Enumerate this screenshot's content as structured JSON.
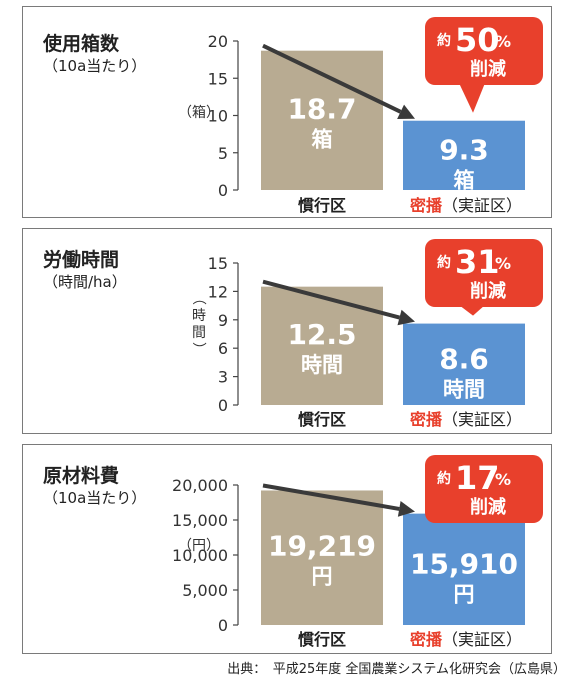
{
  "chart_data": [
    {
      "type": "bar",
      "title": "使用箱数",
      "subtitle": "（10a当たり）",
      "ylabel": "（箱）",
      "ylim": [
        0,
        20
      ],
      "yticks": [
        0,
        5,
        10,
        15,
        20
      ],
      "categories": [
        "慣行区",
        "密播（実証区）"
      ],
      "category_highlight": "密播",
      "category_rest": "（実証区）",
      "values": [
        18.7,
        9.3
      ],
      "value_labels": [
        "18.7",
        "9.3"
      ],
      "unit_label": "箱",
      "callout": {
        "prefix": "約",
        "number": "50",
        "percent": "%",
        "text": "削減"
      },
      "colors": {
        "conventional": "#b8ab92",
        "dense": "#5b93d2",
        "callout": "#e8402c"
      }
    },
    {
      "type": "bar",
      "title": "労働時間",
      "subtitle": "（時間/ha）",
      "ylabel": "（時間）",
      "ylim": [
        0,
        15
      ],
      "yticks": [
        0,
        3,
        6,
        9,
        12,
        15
      ],
      "categories": [
        "慣行区",
        "密播（実証区）"
      ],
      "category_highlight": "密播",
      "category_rest": "（実証区）",
      "values": [
        12.5,
        8.6
      ],
      "value_labels": [
        "12.5",
        "8.6"
      ],
      "unit_label": "時間",
      "callout": {
        "prefix": "約",
        "number": "31",
        "percent": "%",
        "text": "削減"
      },
      "colors": {
        "conventional": "#b8ab92",
        "dense": "#5b93d2",
        "callout": "#e8402c"
      }
    },
    {
      "type": "bar",
      "title": "原材料費",
      "subtitle": "（10a当たり）",
      "ylabel": "（円）",
      "ylim": [
        0,
        20000
      ],
      "yticks": [
        0,
        5000,
        10000,
        15000,
        20000
      ],
      "ytick_labels": [
        "0",
        "5,000",
        "10,000",
        "15,000",
        "20,000"
      ],
      "categories": [
        "慣行区",
        "密播（実証区）"
      ],
      "category_highlight": "密播",
      "category_rest": "（実証区）",
      "values": [
        19219,
        15910
      ],
      "value_labels": [
        "19,219",
        "15,910"
      ],
      "unit_label": "円",
      "callout": {
        "prefix": "約",
        "number": "17",
        "percent": "%",
        "text": "削減"
      },
      "colors": {
        "conventional": "#b8ab92",
        "dense": "#5b93d2",
        "callout": "#e8402c"
      }
    }
  ],
  "source": "出典：　平成25年度 全国農業システム化研究会（広島県）"
}
